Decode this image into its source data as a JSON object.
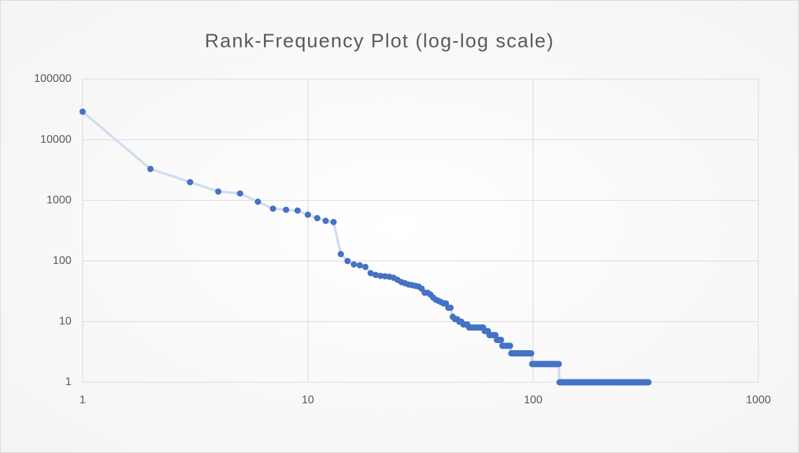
{
  "chart_data": {
    "type": "scatter",
    "title": "Rank-Frequency Plot (log-log scale)",
    "xscale": "log",
    "yscale": "log",
    "grid": true,
    "xlim": [
      1,
      1000
    ],
    "xticks": [
      1,
      10,
      100,
      1000
    ],
    "ylim": [
      1,
      100000
    ],
    "yticks": [
      1,
      10,
      100,
      1000,
      10000,
      100000
    ],
    "line_color": "#cfdcf0",
    "series": [
      {
        "color": "#4472c4",
        "x": [
          1,
          2,
          3,
          4,
          5,
          6,
          7,
          8,
          9,
          10,
          11,
          12,
          13,
          14,
          15,
          16,
          17,
          18,
          19,
          20,
          21,
          22,
          23,
          24,
          25,
          26,
          27,
          28,
          29,
          30,
          31,
          32,
          33,
          34,
          35,
          36,
          37,
          38,
          39,
          40,
          41,
          42,
          43,
          44,
          45,
          46,
          47,
          48,
          49,
          50,
          51,
          52,
          53,
          54,
          55,
          56,
          57,
          58,
          59,
          60,
          61,
          62,
          63,
          64,
          65,
          66,
          67,
          68,
          69,
          70,
          71,
          72,
          73,
          74,
          75,
          76,
          77,
          78,
          79,
          80,
          81,
          82,
          83,
          84,
          85,
          86,
          87,
          88,
          89,
          90,
          91,
          92,
          93,
          94,
          95,
          96,
          97,
          98,
          99,
          100,
          101,
          102,
          103,
          104,
          105,
          106,
          107,
          108,
          109,
          110,
          111,
          112,
          113,
          114,
          115,
          116,
          117,
          118,
          119,
          120,
          121,
          122,
          123,
          124,
          125,
          126,
          127,
          128,
          129,
          130,
          131,
          132,
          133,
          134,
          135,
          136,
          137,
          138,
          139,
          140,
          141,
          142,
          143,
          144,
          145,
          146,
          147,
          148,
          149,
          150,
          151,
          152,
          153,
          154,
          155,
          156,
          157,
          158,
          159,
          160,
          161,
          162,
          163,
          164,
          165,
          166,
          167,
          168,
          169,
          170,
          171,
          172,
          173,
          174,
          175,
          176,
          177,
          178,
          179,
          180,
          181,
          182,
          183,
          184,
          185,
          186,
          187,
          188,
          189,
          190,
          191,
          192,
          193,
          194,
          195,
          196,
          197,
          198,
          199,
          200,
          201,
          202,
          203,
          204,
          205,
          206,
          207,
          208,
          209,
          210,
          211,
          212,
          213,
          214,
          215,
          216,
          217,
          218,
          219,
          220,
          221,
          222,
          223,
          224,
          225,
          226,
          227,
          228,
          229,
          230,
          231,
          232,
          233,
          234,
          235,
          236,
          237,
          238,
          239,
          240,
          241,
          242,
          243,
          244,
          245,
          246,
          247,
          248,
          249,
          250,
          251,
          252,
          253,
          254,
          255,
          256,
          257,
          258,
          259,
          260,
          261,
          262,
          263,
          264,
          265,
          266,
          267,
          268,
          269,
          270,
          271,
          272,
          273,
          274,
          275,
          276,
          277,
          278,
          279,
          280,
          281,
          282,
          283,
          284,
          285,
          286,
          287,
          288,
          289,
          290,
          291,
          292,
          293,
          294,
          295,
          296,
          297,
          298,
          299,
          300,
          301,
          302,
          303,
          304,
          305,
          306,
          307,
          308,
          309,
          310,
          311,
          312,
          313,
          314,
          315,
          316,
          317,
          318,
          319,
          320,
          321,
          322,
          323,
          324,
          325
        ],
        "values": [
          29000,
          3300,
          2000,
          1400,
          1300,
          950,
          730,
          700,
          680,
          580,
          510,
          460,
          440,
          130,
          100,
          88,
          85,
          80,
          63,
          59,
          57,
          56,
          55,
          53,
          49,
          45,
          43,
          41,
          40,
          39,
          38,
          35,
          30,
          30,
          28,
          25,
          23,
          22,
          21,
          20,
          20,
          17,
          17,
          12,
          11,
          11,
          10,
          10,
          9,
          9,
          9,
          8,
          8,
          8,
          8,
          8,
          8,
          8,
          8,
          8,
          7,
          7,
          7,
          6,
          6,
          6,
          6,
          6,
          5,
          5,
          5,
          5,
          4,
          4,
          4,
          4,
          4,
          4,
          4,
          3,
          3,
          3,
          3,
          3,
          3,
          3,
          3,
          3,
          3,
          3,
          3,
          3,
          3,
          3,
          3,
          3,
          3,
          3,
          2,
          2,
          2,
          2,
          2,
          2,
          2,
          2,
          2,
          2,
          2,
          2,
          2,
          2,
          2,
          2,
          2,
          2,
          2,
          2,
          2,
          2,
          2,
          2,
          2,
          2,
          2,
          2,
          2,
          2,
          2,
          2,
          1,
          1,
          1,
          1,
          1,
          1,
          1,
          1,
          1,
          1,
          1,
          1,
          1,
          1,
          1,
          1,
          1,
          1,
          1,
          1,
          1,
          1,
          1,
          1,
          1,
          1,
          1,
          1,
          1,
          1,
          1,
          1,
          1,
          1,
          1,
          1,
          1,
          1,
          1,
          1,
          1,
          1,
          1,
          1,
          1,
          1,
          1,
          1,
          1,
          1,
          1,
          1,
          1,
          1,
          1,
          1,
          1,
          1,
          1,
          1,
          1,
          1,
          1,
          1,
          1,
          1,
          1,
          1,
          1,
          1,
          1,
          1,
          1,
          1,
          1,
          1,
          1,
          1,
          1,
          1,
          1,
          1,
          1,
          1,
          1,
          1,
          1,
          1,
          1,
          1,
          1,
          1,
          1,
          1,
          1,
          1,
          1,
          1,
          1,
          1,
          1,
          1,
          1,
          1,
          1,
          1,
          1,
          1,
          1,
          1,
          1,
          1,
          1,
          1,
          1,
          1,
          1,
          1,
          1,
          1,
          1,
          1,
          1,
          1,
          1,
          1,
          1,
          1,
          1,
          1,
          1,
          1,
          1,
          1,
          1,
          1,
          1,
          1,
          1,
          1,
          1,
          1,
          1,
          1,
          1,
          1,
          1,
          1,
          1,
          1,
          1,
          1,
          1,
          1,
          1,
          1,
          1,
          1,
          1,
          1,
          1,
          1,
          1,
          1,
          1,
          1,
          1,
          1,
          1,
          1,
          1,
          1,
          1,
          1,
          1,
          1,
          1,
          1,
          1,
          1,
          1,
          1,
          1,
          1,
          1,
          1,
          1,
          1,
          1,
          1,
          1,
          1,
          1,
          1,
          1
        ]
      }
    ]
  }
}
